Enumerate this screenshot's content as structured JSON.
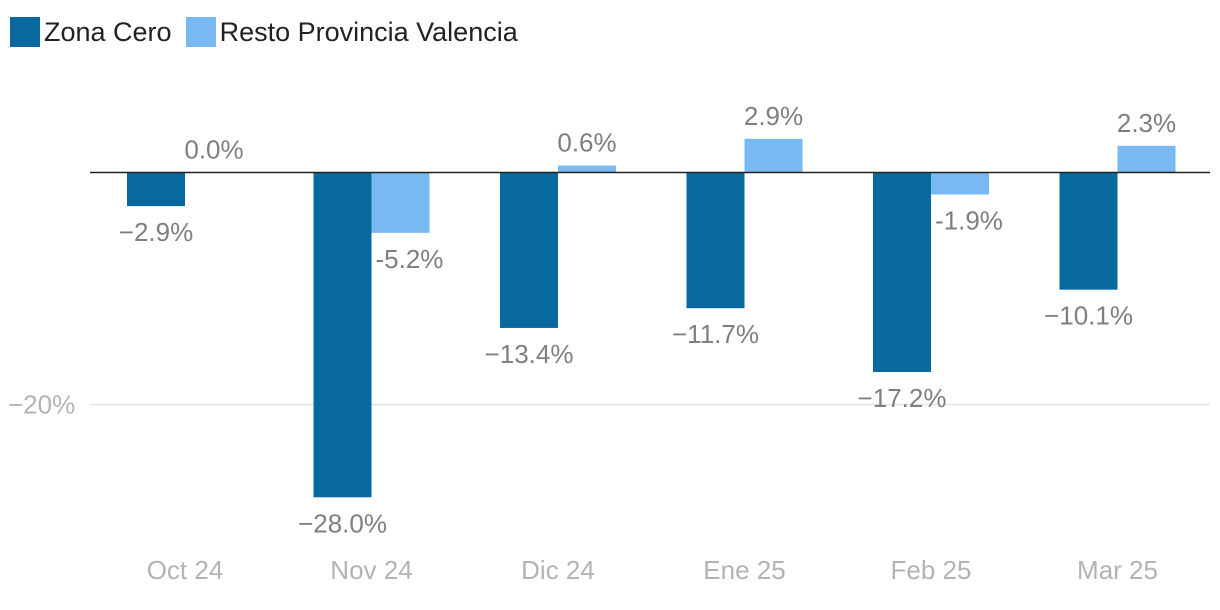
{
  "chart_data": {
    "type": "bar",
    "categories": [
      "Oct 24",
      "Nov 24",
      "Dic 24",
      "Ene 25",
      "Feb 25",
      "Mar 25"
    ],
    "series": [
      {
        "name": "Zona Cero",
        "color": "#07699e",
        "values": [
          -2.9,
          -28.0,
          -13.4,
          -11.7,
          -17.2,
          -10.1
        ],
        "labels": [
          "−2.9%",
          "−28.0%",
          "−13.4%",
          "−11.7%",
          "−17.2%",
          "−10.1%"
        ]
      },
      {
        "name": "Resto Provincia Valencia",
        "color": "#77b9f0",
        "values": [
          0.0,
          -5.2,
          0.6,
          2.9,
          -1.9,
          2.3
        ],
        "labels": [
          "0.0%",
          "-5.2%",
          "0.6%",
          "2.9%",
          "-1.9%",
          "2.3%"
        ]
      }
    ],
    "yticks": [
      {
        "value": -20,
        "label": "−20%"
      }
    ],
    "ylim": [
      -32,
      6
    ],
    "zero_line": true,
    "grid": true,
    "legend": "top-left"
  }
}
